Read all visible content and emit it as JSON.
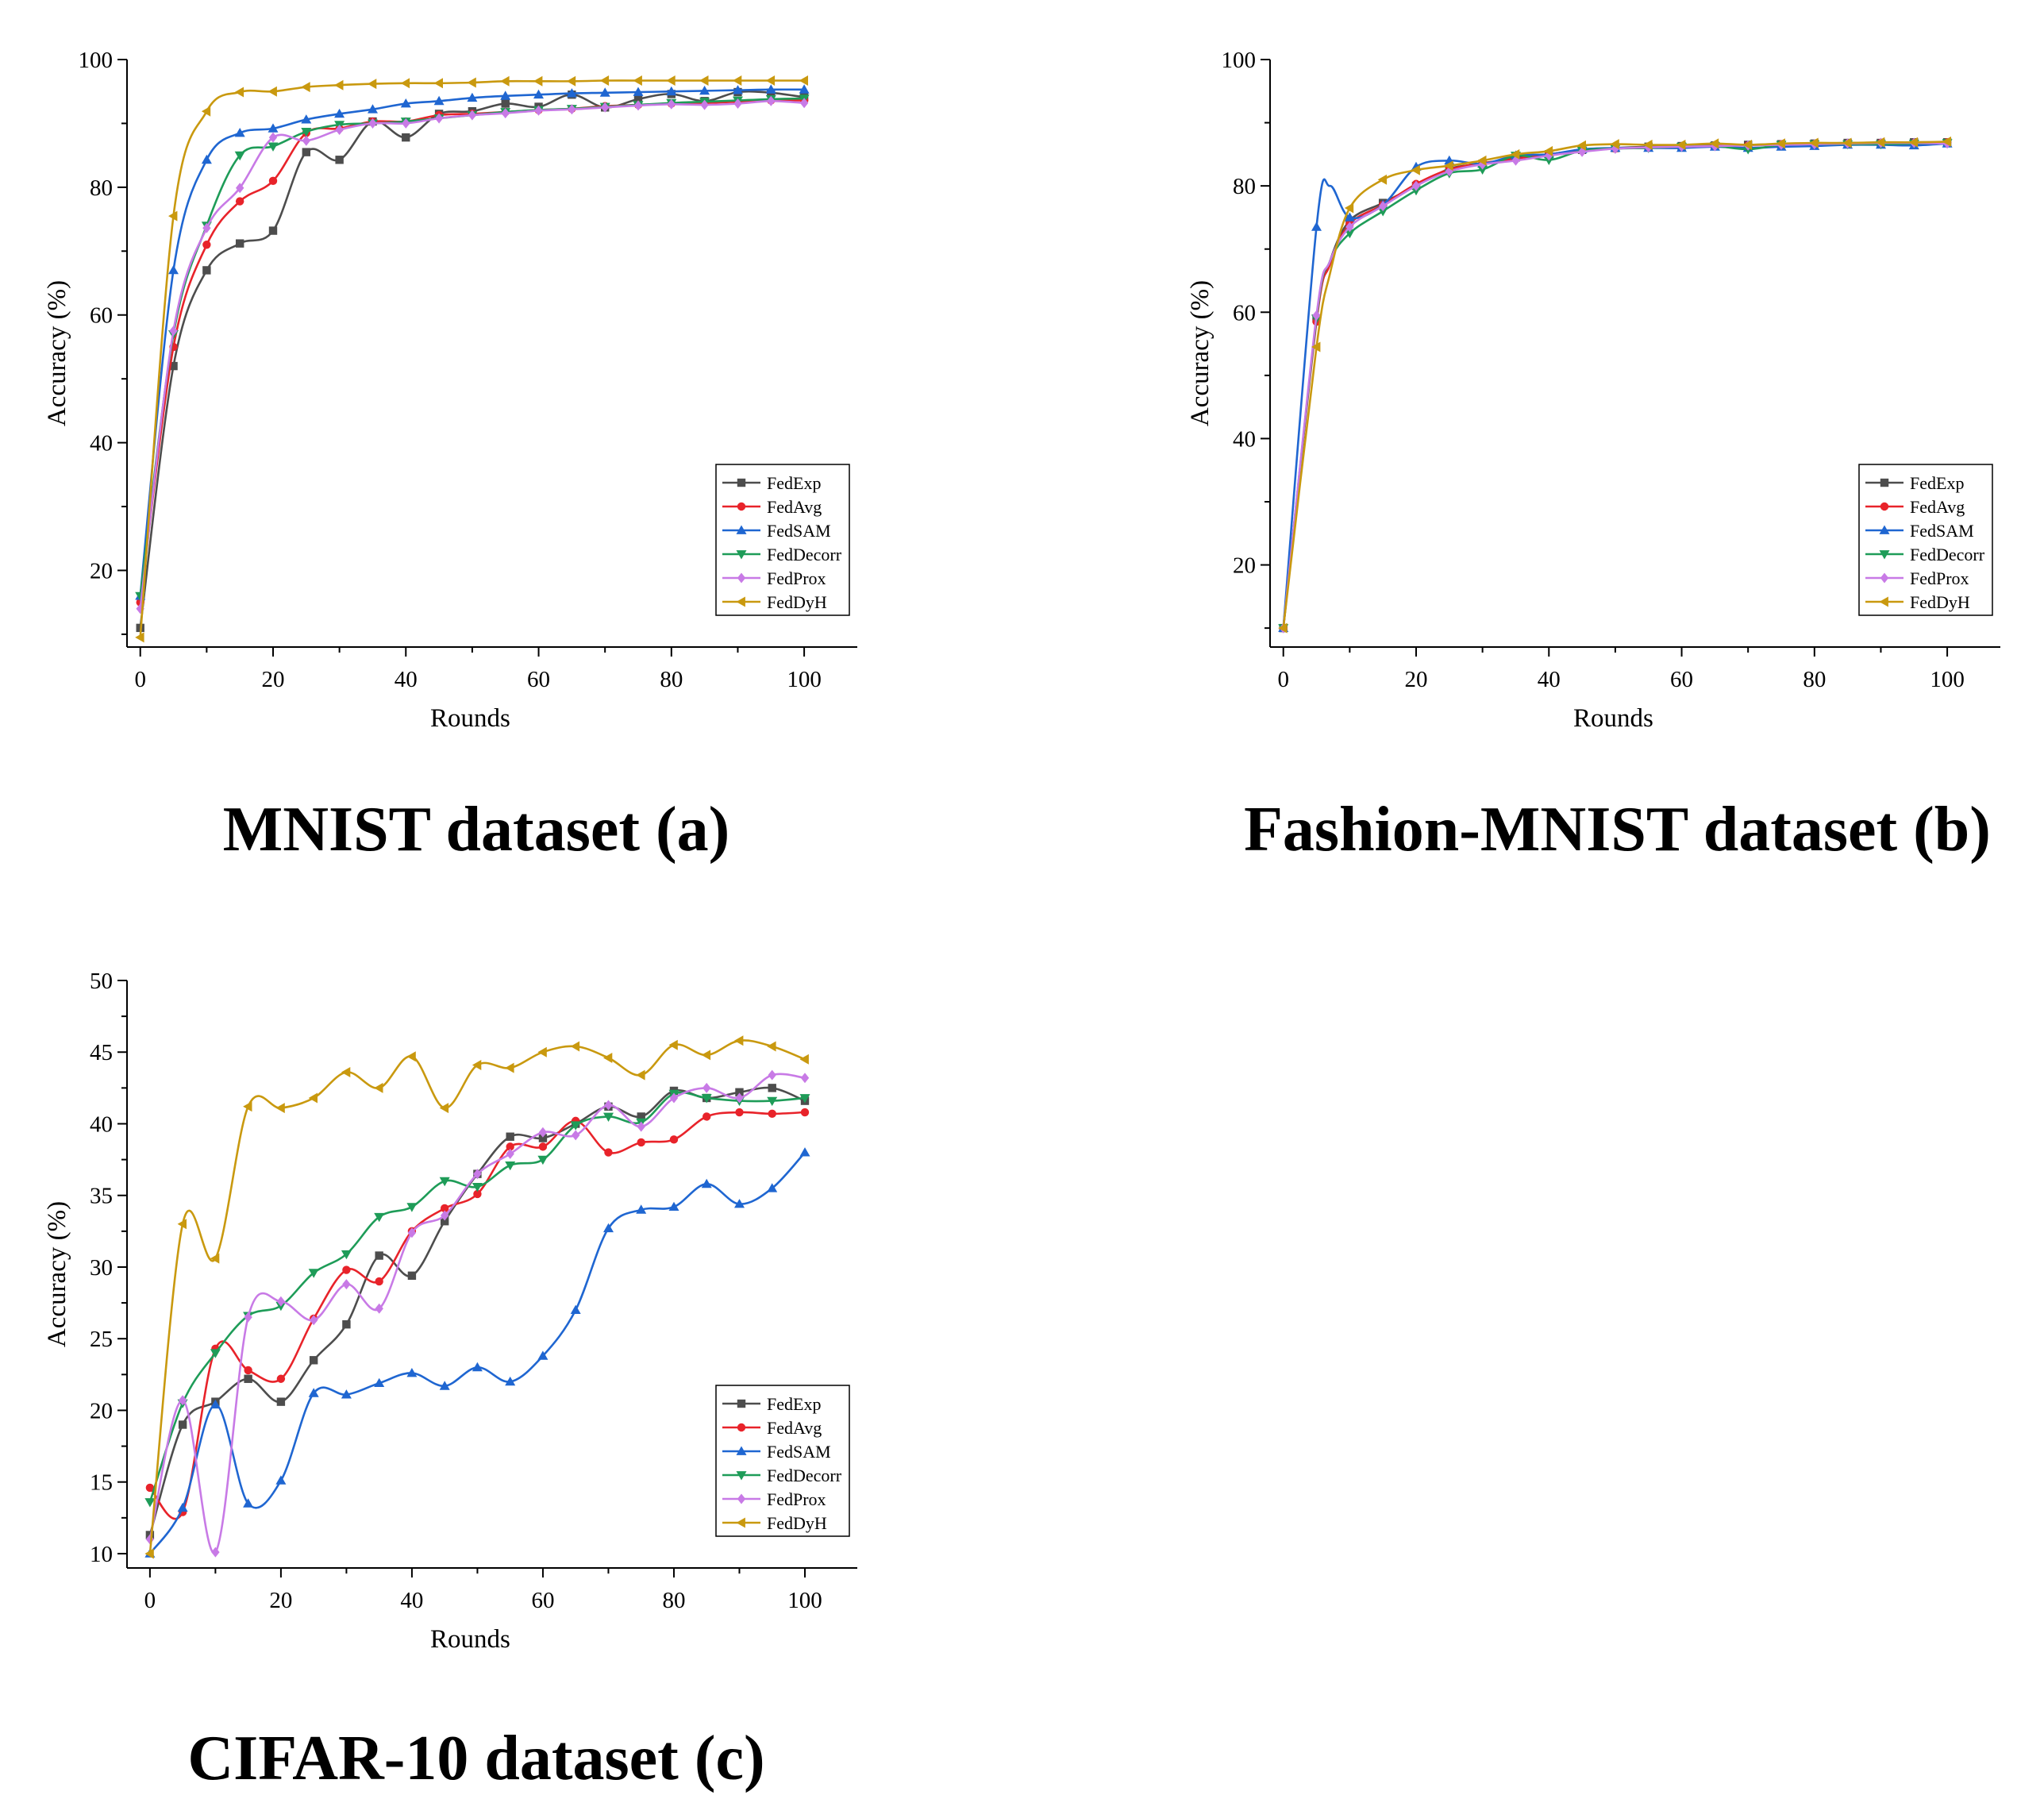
{
  "colors": {
    "FedExp": "#4d4d4d",
    "FedAvg": "#e8232a",
    "FedSAM": "#1f66d1",
    "FedDecorr": "#1e9c58",
    "FedProx": "#c87ae6",
    "FedDyH": "#c9990f"
  },
  "chart_data": [
    {
      "type": "line",
      "caption": "MNIST dataset (a)",
      "xlabel": "Rounds",
      "ylabel": "Accuracy (%)",
      "xlim": [
        -2,
        108
      ],
      "ylim": [
        8,
        100
      ],
      "xticks": [
        0,
        20,
        40,
        60,
        80,
        100
      ],
      "yticks": [
        20,
        40,
        60,
        80,
        100
      ],
      "legend": "bottom-right",
      "x": [
        0,
        5,
        10,
        15,
        20,
        25,
        30,
        35,
        40,
        45,
        50,
        55,
        60,
        65,
        70,
        75,
        80,
        85,
        90,
        95,
        100
      ],
      "series": [
        {
          "name": "FedExp",
          "marker": "square",
          "values": [
            11,
            52,
            67,
            71.2,
            73.2,
            85.5,
            84.3,
            90.3,
            87.8,
            91.5,
            91.9,
            93.1,
            92.6,
            94.5,
            92.5,
            93.8,
            94.6,
            93.5,
            94.9,
            94.8,
            94.1
          ]
        },
        {
          "name": "FedAvg",
          "marker": "circle",
          "values": [
            15,
            55,
            71,
            77.8,
            81,
            88.5,
            89.2,
            90.3,
            90.3,
            91.3,
            91.5,
            91.8,
            92.1,
            92.3,
            92.7,
            92.9,
            93.1,
            93.2,
            93.4,
            93.6,
            93.6
          ]
        },
        {
          "name": "FedSAM",
          "marker": "triangle-up",
          "values": [
            16,
            67,
            84.3,
            88.5,
            89.2,
            90.6,
            91.5,
            92.2,
            93.1,
            93.5,
            94,
            94.3,
            94.5,
            94.7,
            94.8,
            94.9,
            95,
            95.1,
            95.2,
            95.3,
            95.3
          ]
        },
        {
          "name": "FedDecorr",
          "marker": "triangle-down",
          "values": [
            16,
            57,
            74,
            85,
            86.4,
            88.7,
            89.8,
            90,
            90.3,
            90.8,
            91.3,
            91.8,
            92.1,
            92.3,
            92.6,
            92.9,
            93.2,
            93.4,
            93.6,
            93.8,
            93.9
          ]
        },
        {
          "name": "FedProx",
          "marker": "diamond",
          "values": [
            14,
            57.5,
            73.6,
            79.9,
            87.8,
            87.3,
            89,
            90,
            90,
            90.8,
            91.3,
            91.6,
            92,
            92.2,
            92.5,
            92.8,
            93,
            92.9,
            93.1,
            93.5,
            93.2
          ]
        },
        {
          "name": "FedDyH",
          "marker": "triangle-left",
          "values": [
            9.5,
            75.5,
            91.9,
            94.9,
            95,
            95.7,
            96,
            96.2,
            96.3,
            96.3,
            96.4,
            96.6,
            96.6,
            96.6,
            96.7,
            96.7,
            96.7,
            96.7,
            96.7,
            96.7,
            96.7
          ]
        }
      ]
    },
    {
      "type": "line",
      "caption": "Fashion-MNIST dataset (b)",
      "xlabel": "Rounds",
      "ylabel": "Accuracy (%)",
      "xlim": [
        -2,
        108
      ],
      "ylim": [
        7,
        100
      ],
      "xticks": [
        0,
        20,
        40,
        60,
        80,
        100
      ],
      "yticks": [
        20,
        40,
        60,
        80,
        100
      ],
      "legend": "bottom-right",
      "x": [
        0,
        5,
        7,
        10,
        15,
        20,
        25,
        30,
        35,
        40,
        45,
        50,
        55,
        60,
        65,
        70,
        75,
        80,
        85,
        90,
        95,
        100
      ],
      "series": [
        {
          "name": "FedExp",
          "marker": "square",
          "values": [
            10,
            59,
            68,
            74.5,
            77.3,
            80,
            82.7,
            83.5,
            84.5,
            85,
            85.7,
            86,
            86.2,
            86.3,
            86.4,
            86.5,
            86.6,
            86.7,
            86.8,
            86.8,
            86.9,
            86.9
          ]
        },
        {
          "name": "FedAvg",
          "marker": "circle",
          "values": [
            10,
            58.5,
            67.5,
            74,
            77,
            80.3,
            82.6,
            83.6,
            84.3,
            85,
            85.6,
            85.9,
            86.1,
            86.2,
            86.4,
            86.4,
            86.6,
            86.6,
            86.7,
            86.8,
            86.8,
            86.9
          ]
        },
        {
          "name": "FedSAM",
          "marker": "triangle-up",
          "values": [
            10,
            73.5,
            80,
            75,
            77,
            83,
            84,
            83.5,
            84.8,
            85,
            85.8,
            86,
            86,
            86,
            86.2,
            86,
            86.2,
            86.3,
            86.5,
            86.5,
            86.4,
            86.7
          ]
        },
        {
          "name": "FedDecorr",
          "marker": "triangle-down",
          "values": [
            10,
            59,
            68,
            72.5,
            76,
            79.3,
            82,
            82.6,
            84.8,
            84.1,
            85.6,
            85.9,
            86,
            86.2,
            86.3,
            85.8,
            86.5,
            86.6,
            86.6,
            86.6,
            86.7,
            86.8
          ]
        },
        {
          "name": "FedProx",
          "marker": "diamond",
          "values": [
            10,
            59.5,
            68,
            73.5,
            76.8,
            80,
            82.3,
            83.4,
            84,
            84.8,
            85.4,
            85.9,
            86.1,
            86.2,
            86.3,
            86.4,
            86.5,
            86.6,
            86.7,
            86.8,
            86.8,
            86.7
          ]
        },
        {
          "name": "FedDyH",
          "marker": "triangle-left",
          "values": [
            10,
            54.5,
            66,
            76.5,
            81,
            82.5,
            83.2,
            84,
            85,
            85.5,
            86.4,
            86.6,
            86.5,
            86.5,
            86.7,
            86.5,
            86.7,
            86.8,
            86.8,
            86.9,
            86.9,
            87
          ]
        }
      ]
    },
    {
      "type": "line",
      "caption": "CIFAR-10 dataset (c)",
      "xlabel": "Rounds",
      "ylabel": "Accuracy (%)",
      "xlim": [
        -3.5,
        108
      ],
      "ylim": [
        9,
        50
      ],
      "xticks": [
        0,
        20,
        40,
        60,
        80,
        100
      ],
      "yticks": [
        10,
        15,
        20,
        25,
        30,
        35,
        40,
        45,
        50
      ],
      "legend": "bottom-right",
      "x": [
        0,
        5,
        10,
        15,
        20,
        25,
        30,
        35,
        40,
        45,
        50,
        55,
        60,
        65,
        70,
        75,
        80,
        85,
        90,
        95,
        100
      ],
      "series": [
        {
          "name": "FedExp",
          "marker": "square",
          "values": [
            11.3,
            19,
            20.6,
            22.2,
            20.6,
            23.5,
            26,
            30.8,
            29.4,
            33.2,
            36.5,
            39.1,
            39,
            40,
            41.2,
            40.5,
            42.3,
            41.8,
            42.2,
            42.5,
            41.6
          ]
        },
        {
          "name": "FedAvg",
          "marker": "circle",
          "values": [
            14.6,
            12.9,
            24.3,
            22.8,
            22.2,
            26.4,
            29.8,
            29,
            32.5,
            34.1,
            35.1,
            38.4,
            38.4,
            40.2,
            38,
            38.7,
            38.9,
            40.5,
            40.8,
            40.7,
            40.8
          ]
        },
        {
          "name": "FedSAM",
          "marker": "triangle-up",
          "values": [
            10,
            13.2,
            20.4,
            13.5,
            15.1,
            21.2,
            21.1,
            21.9,
            22.6,
            21.7,
            23,
            22,
            23.8,
            27,
            32.7,
            34,
            34.2,
            35.8,
            34.4,
            35.5,
            38
          ]
        },
        {
          "name": "FedDecorr",
          "marker": "triangle-down",
          "values": [
            13.6,
            20.5,
            24,
            26.6,
            27.3,
            29.6,
            30.9,
            33.5,
            34.2,
            36,
            35.6,
            37.1,
            37.5,
            39.9,
            40.5,
            40.1,
            42.1,
            41.8,
            41.6,
            41.6,
            41.8
          ]
        },
        {
          "name": "FedProx",
          "marker": "diamond",
          "values": [
            11,
            20.7,
            10.1,
            26.5,
            27.6,
            26.3,
            28.8,
            27.1,
            32.4,
            33.6,
            36.5,
            37.9,
            39.4,
            39.2,
            41.3,
            39.8,
            41.8,
            42.5,
            41.8,
            43.4,
            43.2
          ]
        },
        {
          "name": "FedDyH",
          "marker": "triangle-left",
          "values": [
            10,
            33,
            30.6,
            41.2,
            41.1,
            41.8,
            43.6,
            42.5,
            44.7,
            41.1,
            44.1,
            43.9,
            45,
            45.4,
            44.6,
            43.4,
            45.5,
            44.8,
            45.8,
            45.4,
            44.5
          ]
        }
      ]
    }
  ]
}
